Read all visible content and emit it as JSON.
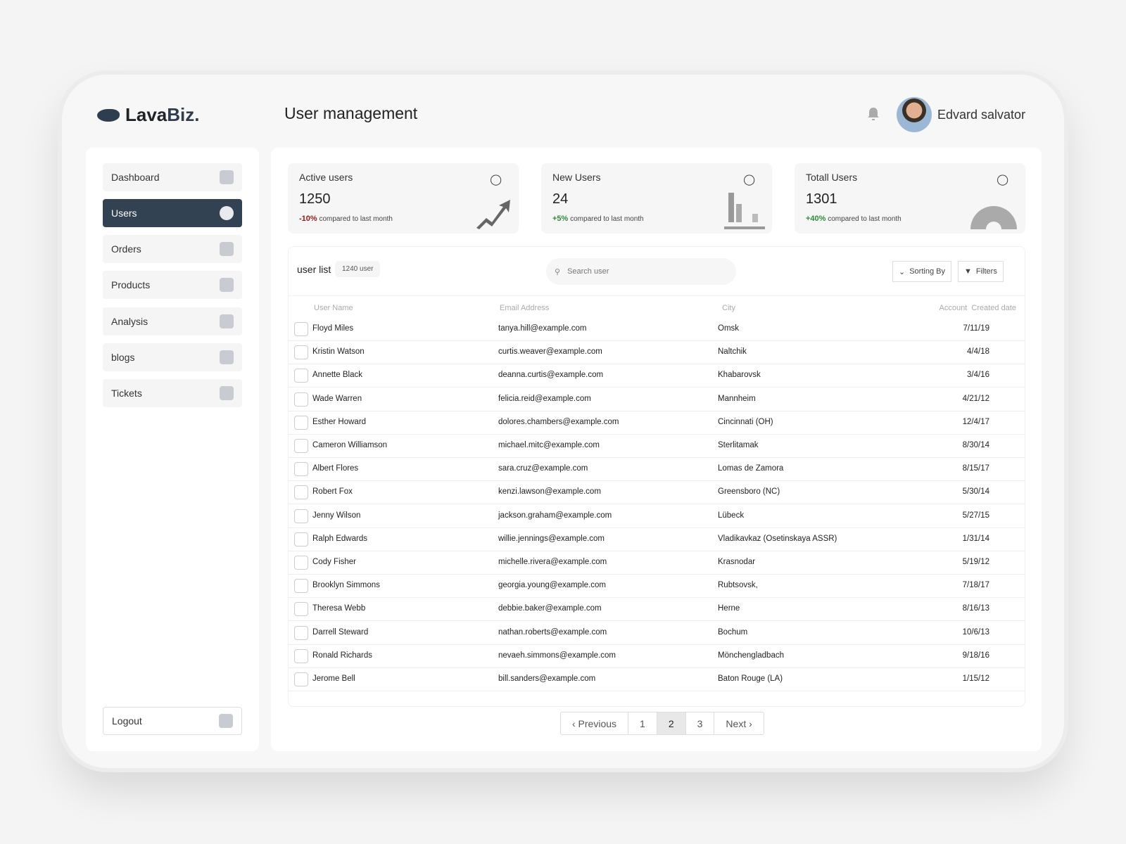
{
  "app": {
    "logo_a": "Lava",
    "logo_b": "Biz.",
    "page_title": "User management",
    "user_name": "Edvard salvator"
  },
  "sidebar": {
    "items": [
      {
        "label": "Dashboard",
        "icon": "home-icon"
      },
      {
        "label": "Users",
        "icon": "users-icon",
        "active": true
      },
      {
        "label": "Orders",
        "icon": "clipboard-icon"
      },
      {
        "label": "Products",
        "icon": "box-icon"
      },
      {
        "label": "Analysis",
        "icon": "chart-icon"
      },
      {
        "label": "blogs",
        "icon": "document-icon"
      },
      {
        "label": "Tickets",
        "icon": "mailbox-icon"
      }
    ],
    "logout": "Logout"
  },
  "stats": [
    {
      "label": "Active users",
      "value": "1250",
      "change": "-10%",
      "change_color": "#8b1a1a",
      "note": "compared to last month"
    },
    {
      "label": "New Users",
      "value": "24",
      "change": "+5%",
      "change_color": "#2e8b3a",
      "note": "compared to last month"
    },
    {
      "label": "Totall Users",
      "value": "1301",
      "change": "+40%",
      "change_color": "#2e8b3a",
      "note": "compared to last month"
    }
  ],
  "list": {
    "title": "user list",
    "count": "1240 user",
    "search_placeholder": "Search user",
    "sort": "Sorting By",
    "filters": "Filters",
    "columns": [
      "User Name",
      "Email Address",
      "City",
      "Account  Created date"
    ],
    "rows": [
      [
        "Floyd Miles",
        "tanya.hill@example.com",
        "Omsk",
        "7/11/19"
      ],
      [
        "Kristin Watson",
        "curtis.weaver@example.com",
        "Naltchik",
        "4/4/18"
      ],
      [
        "Annette Black",
        "deanna.curtis@example.com",
        "Khabarovsk",
        "3/4/16"
      ],
      [
        "Wade Warren",
        "felicia.reid@example.com",
        "Mannheim",
        "4/21/12"
      ],
      [
        "Esther Howard",
        "dolores.chambers@example.com",
        "Cincinnati (OH)",
        "12/4/17"
      ],
      [
        "Cameron Williamson",
        "michael.mitc@example.com",
        "Sterlitamak",
        "8/30/14"
      ],
      [
        "Albert Flores",
        "sara.cruz@example.com",
        "Lomas de Zamora",
        "8/15/17"
      ],
      [
        "Robert Fox",
        "kenzi.lawson@example.com",
        "Greensboro (NC)",
        "5/30/14"
      ],
      [
        "Jenny Wilson",
        "jackson.graham@example.com",
        "Lübeck",
        "5/27/15"
      ],
      [
        "Ralph Edwards",
        "willie.jennings@example.com",
        "Vladikavkaz (Osetinskaya ASSR)",
        "1/31/14"
      ],
      [
        "Cody Fisher",
        "michelle.rivera@example.com",
        "Krasnodar",
        "5/19/12"
      ],
      [
        "Brooklyn Simmons",
        "georgia.young@example.com",
        "Rubtsovsk,",
        "7/18/17"
      ],
      [
        "Theresa Webb",
        "debbie.baker@example.com",
        "Herne",
        "8/16/13"
      ],
      [
        "Darrell Steward",
        "nathan.roberts@example.com",
        "Bochum",
        "10/6/13"
      ],
      [
        "Ronald Richards",
        "nevaeh.simmons@example.com",
        "Mönchengladbach",
        "9/18/16"
      ],
      [
        "Jerome Bell",
        "bill.sanders@example.com",
        "Baton Rouge (LA)",
        "1/15/12"
      ]
    ]
  },
  "pagination": {
    "previous": "‹ Previous",
    "pages": [
      "1",
      "2",
      "3"
    ],
    "current": "2",
    "next": "Next ›"
  }
}
